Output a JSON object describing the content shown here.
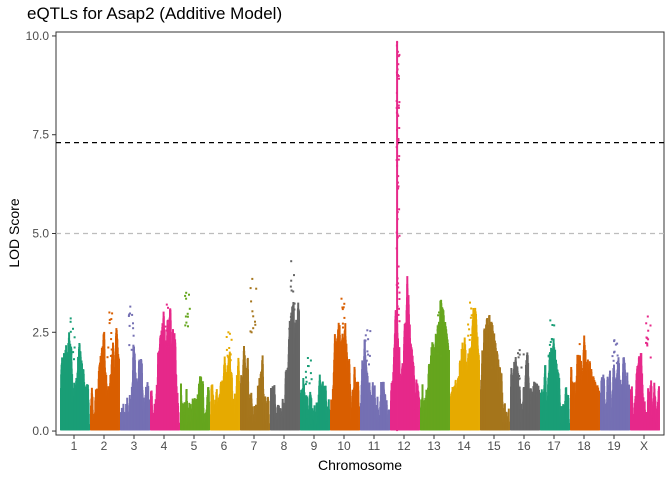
{
  "chart_data": {
    "type": "scatter",
    "title": "eQTLs for Asap2 (Additive Model)",
    "xlabel": "Chromosome",
    "ylabel": "LOD Score",
    "ylim": [
      -0.1,
      10.1
    ],
    "y_ticks": [
      0.0,
      2.5,
      5.0,
      7.5,
      10.0
    ],
    "y_tick_labels": [
      "0.0",
      "2.5",
      "5.0",
      "7.5",
      "10.0"
    ],
    "grid": false,
    "thresholds": [
      {
        "value": 7.3,
        "style": "dashed",
        "color": "#000000"
      },
      {
        "value": 5.0,
        "style": "dashed",
        "color": "#bdbdbd"
      }
    ],
    "chromosomes": [
      "1",
      "2",
      "3",
      "4",
      "5",
      "6",
      "7",
      "8",
      "9",
      "10",
      "11",
      "12",
      "13",
      "14",
      "15",
      "16",
      "17",
      "18",
      "19",
      "X"
    ],
    "chromosome_colors": [
      "#1b9e77",
      "#d95f02",
      "#7570b3",
      "#e7298a",
      "#66a61e",
      "#e6ab02",
      "#a6761d",
      "#666666",
      "#1b9e77",
      "#d95f02",
      "#7570b3",
      "#e7298a",
      "#66a61e",
      "#e6ab02",
      "#a6761d",
      "#666666",
      "#1b9e77",
      "#d95f02",
      "#7570b3",
      "#e7298a"
    ],
    "chromosome_peak_lod": [
      2.85,
      3.0,
      3.15,
      3.2,
      3.5,
      2.5,
      3.85,
      4.3,
      1.85,
      3.35,
      2.55,
      9.85,
      3.0,
      3.25,
      2.5,
      2.05,
      2.8,
      2.2,
      2.3,
      2.9
    ],
    "peak": {
      "chromosome": "12",
      "lod": 9.85
    }
  }
}
